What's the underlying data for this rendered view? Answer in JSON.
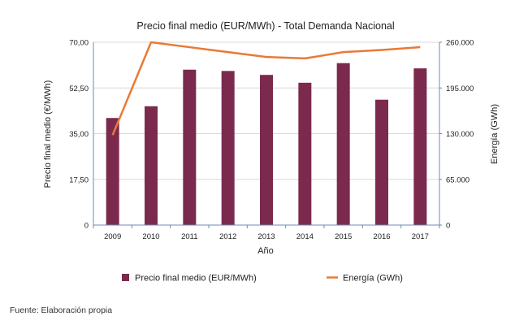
{
  "chart_data": {
    "type": "bar",
    "title": "Precio final medio (EUR/MWh) - Total Demanda Nacional",
    "xlabel": "Año",
    "ylabel": "Precio final medio (€/MWh)",
    "y2label": "Energía (GWh)",
    "ylim": [
      0,
      70
    ],
    "y2lim": [
      0,
      260000
    ],
    "yticks": [
      "0",
      "17,50",
      "35,00",
      "52,50",
      "70,00"
    ],
    "y2ticks": [
      "0",
      "65.000",
      "130.000",
      "195.000",
      "260.000"
    ],
    "categories": [
      "2009",
      "2010",
      "2011",
      "2012",
      "2013",
      "2014",
      "2015",
      "2016",
      "2017"
    ],
    "series": [
      {
        "name": "Precio final medio (EUR/MWh)",
        "type": "bar",
        "axis": "left",
        "color": "#7B2A4E",
        "values": [
          41.0,
          45.5,
          59.5,
          59.0,
          57.5,
          54.5,
          62.0,
          48.0,
          60.0
        ]
      },
      {
        "name": "Energía (GWh)",
        "type": "line",
        "axis": "right",
        "color": "#E87A36",
        "values": [
          128000,
          260000,
          253000,
          246000,
          239000,
          237000,
          246000,
          249000,
          253000
        ]
      }
    ],
    "grid": true,
    "legend": "bottom"
  },
  "footer": {
    "source": "Fuente: Elaboración propia"
  }
}
